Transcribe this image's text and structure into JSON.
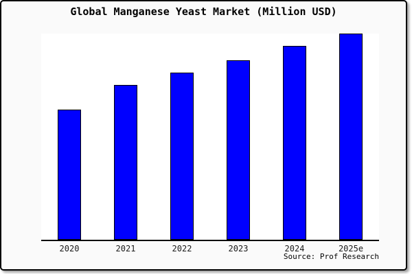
{
  "title": "Global Manganese Yeast Market (Million USD)",
  "source": "Source: Prof Research",
  "frame": {
    "border_color": "#000000",
    "outer_background": "#ffffff",
    "canvas_background": "#fafafa",
    "plot_background": "#ffffff"
  },
  "chart_data": {
    "type": "bar",
    "title": "Global Manganese Yeast Market (Million USD)",
    "categories": [
      "2020",
      "2021",
      "2022",
      "2023",
      "2024",
      "2025e"
    ],
    "values": [
      63,
      75,
      81,
      87,
      94,
      100
    ],
    "xlabel": "",
    "ylabel": "",
    "ylim": [
      0,
      100
    ],
    "grid": false,
    "legend": false,
    "y_axis_labels_visible": false,
    "bar_color": "#0000ff",
    "bar_border_color": "#000000",
    "axis_color": "#000000",
    "annotation": "Source: Prof Research"
  }
}
